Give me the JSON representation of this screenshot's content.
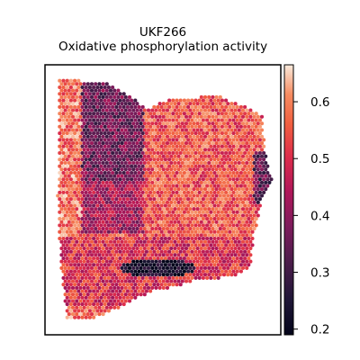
{
  "chart_data": {
    "type": "heatmap",
    "subtype": "spatial-hexbin",
    "title": "UKF266",
    "subtitle": "Oxidative phosphorylation activity",
    "xlabel": "",
    "ylabel": "",
    "x_ticks": [],
    "y_ticks": [],
    "colormap": "rocket",
    "colorbar": {
      "range": [
        0.19,
        0.665
      ],
      "ticks": [
        0.2,
        0.3,
        0.4,
        0.5,
        0.6
      ],
      "tick_labels": [
        "0.2",
        "0.3",
        "0.4",
        "0.5",
        "0.6"
      ]
    },
    "grid": false,
    "regions": [
      {
        "label": "left rim",
        "value": 0.58
      },
      {
        "label": "upper-left core",
        "value": 0.36
      },
      {
        "label": "right half",
        "value": 0.55
      },
      {
        "label": "lower band",
        "value": 0.5
      },
      {
        "label": "lower dark streak",
        "value": 0.22
      },
      {
        "label": "right edge",
        "value": 0.34
      }
    ]
  }
}
